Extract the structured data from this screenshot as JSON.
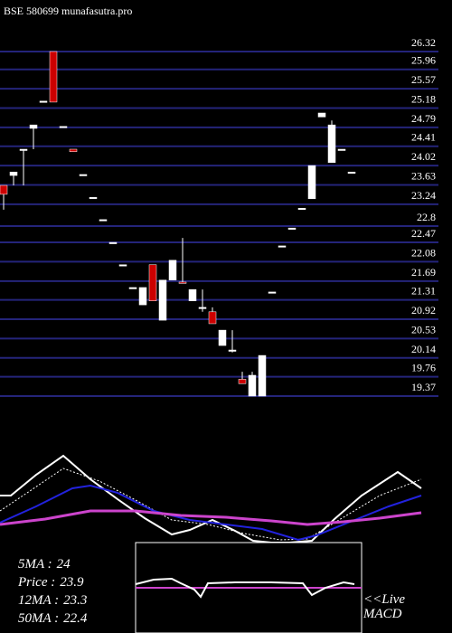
{
  "chart_data": {
    "type": "candlestick",
    "title": "BSE 580699 munafasutra.pro",
    "ylim": [
      19.37,
      26.32
    ],
    "yticks": [
      26.32,
      25.96,
      25.57,
      25.18,
      24.79,
      24.41,
      24.02,
      23.63,
      23.24,
      22.8,
      22.47,
      22.08,
      21.69,
      21.31,
      20.92,
      20.53,
      20.14,
      19.76,
      19.37
    ],
    "grid": true,
    "grid_color": "#24247a",
    "up_color": "#ffffff",
    "down_color": "#cc0000",
    "open": [
      23.62,
      23.82,
      24.35,
      24.77,
      25.32,
      26.32,
      24.81,
      24.35,
      23.84,
      23.38,
      22.93,
      22.47,
      22.02,
      21.56,
      21.21,
      22.02,
      20.9,
      21.71,
      21.67,
      21.29,
      21.16,
      21.07,
      20.39,
      20.3,
      19.71,
      19.37,
      19.37,
      21.47,
      22.4,
      22.76,
      23.16,
      23.35,
      25.0,
      24.08,
      24.35,
      23.89
    ],
    "high": [
      23.62,
      23.89,
      24.35,
      24.84,
      25.32,
      26.32,
      24.81,
      24.35,
      23.84,
      23.38,
      22.93,
      22.47,
      22.02,
      21.56,
      21.56,
      22.02,
      21.71,
      22.11,
      22.56,
      21.52,
      21.52,
      21.16,
      20.7,
      20.7,
      19.86,
      19.86,
      20.19,
      21.47,
      22.4,
      22.76,
      23.16,
      24.02,
      25.08,
      24.93,
      24.35,
      23.89
    ],
    "low": [
      23.13,
      23.62,
      23.62,
      24.35,
      25.32,
      25.3,
      24.81,
      24.3,
      23.84,
      23.38,
      22.93,
      22.47,
      22.02,
      21.56,
      21.21,
      21.29,
      20.9,
      21.71,
      21.65,
      21.29,
      21.07,
      20.83,
      20.39,
      20.25,
      19.62,
      19.37,
      19.37,
      21.47,
      22.4,
      22.76,
      23.16,
      23.35,
      25.0,
      24.08,
      24.35,
      23.89
    ],
    "close": [
      23.44,
      23.89,
      24.35,
      24.84,
      25.32,
      25.3,
      24.81,
      24.3,
      23.84,
      23.38,
      22.93,
      22.47,
      22.02,
      21.56,
      21.56,
      21.29,
      21.71,
      22.11,
      21.65,
      21.52,
      21.16,
      20.83,
      20.7,
      20.3,
      19.62,
      19.79,
      20.19,
      21.47,
      22.4,
      22.76,
      23.16,
      24.02,
      25.08,
      24.84,
      24.35,
      23.89
    ],
    "info": [
      {
        "label": "5MA :",
        "value": 24
      },
      {
        "label": "Price :",
        "value": 23.9
      },
      {
        "label": "12MA :",
        "value": 23.3
      },
      {
        "label": "50MA :",
        "value": 22.4
      }
    ],
    "macd_label": [
      "<<Live",
      "MACD"
    ]
  }
}
